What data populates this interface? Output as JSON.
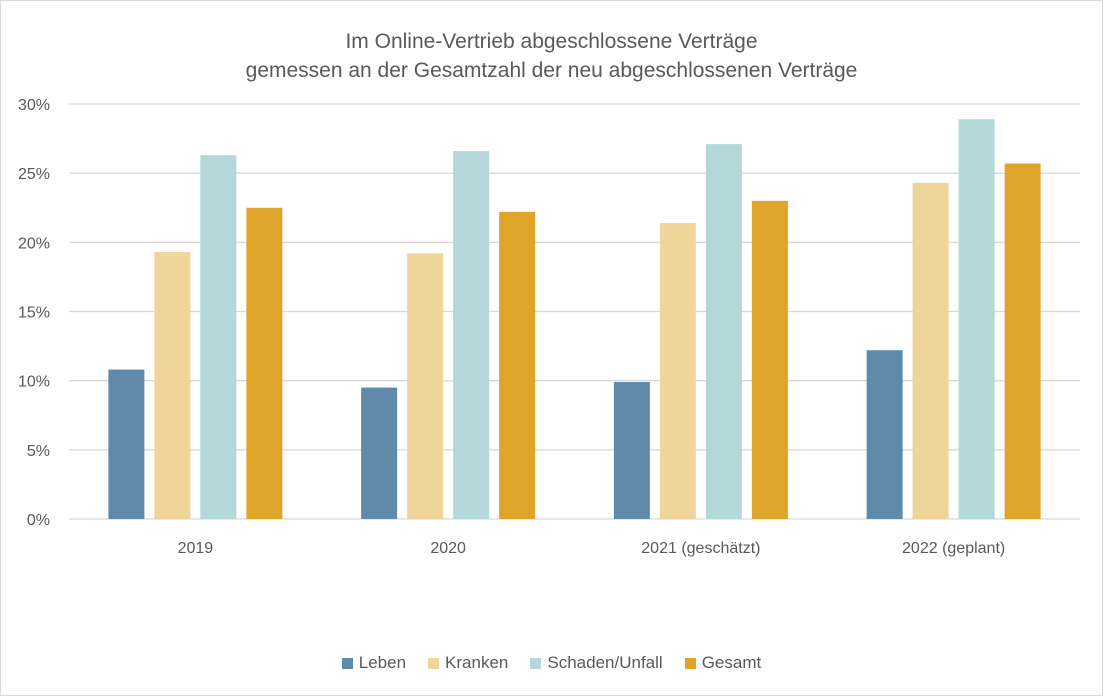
{
  "chart_data": {
    "type": "bar",
    "title": "Im Online-Vertrieb abgeschlossene Verträge",
    "subtitle": "gemessen an der Gesamtzahl der neu abgeschlossenen Verträge",
    "categories": [
      "2019",
      "2020",
      "2021 (geschätzt)",
      "2022 (geplant)"
    ],
    "series": [
      {
        "name": "Leben",
        "color": "#5f8aaa",
        "values": [
          10.8,
          9.5,
          9.9,
          12.2
        ]
      },
      {
        "name": "Kranken",
        "color": "#f0d59a",
        "values": [
          19.3,
          19.2,
          21.4,
          24.3
        ]
      },
      {
        "name": "Schaden/Unfall",
        "color": "#b4d8d9",
        "values": [
          26.3,
          26.6,
          27.1,
          28.9
        ]
      },
      {
        "name": "Gesamt",
        "color": "#dfa42a",
        "values": [
          22.5,
          22.2,
          23.0,
          25.7
        ]
      }
    ],
    "ylim": [
      0,
      30
    ],
    "yticks": [
      "0%",
      "5%",
      "10%",
      "15%",
      "20%",
      "25%",
      "30%"
    ],
    "ytick_values": [
      0,
      5,
      10,
      15,
      20,
      25,
      30
    ],
    "grid": true,
    "legend_position": "bottom"
  }
}
